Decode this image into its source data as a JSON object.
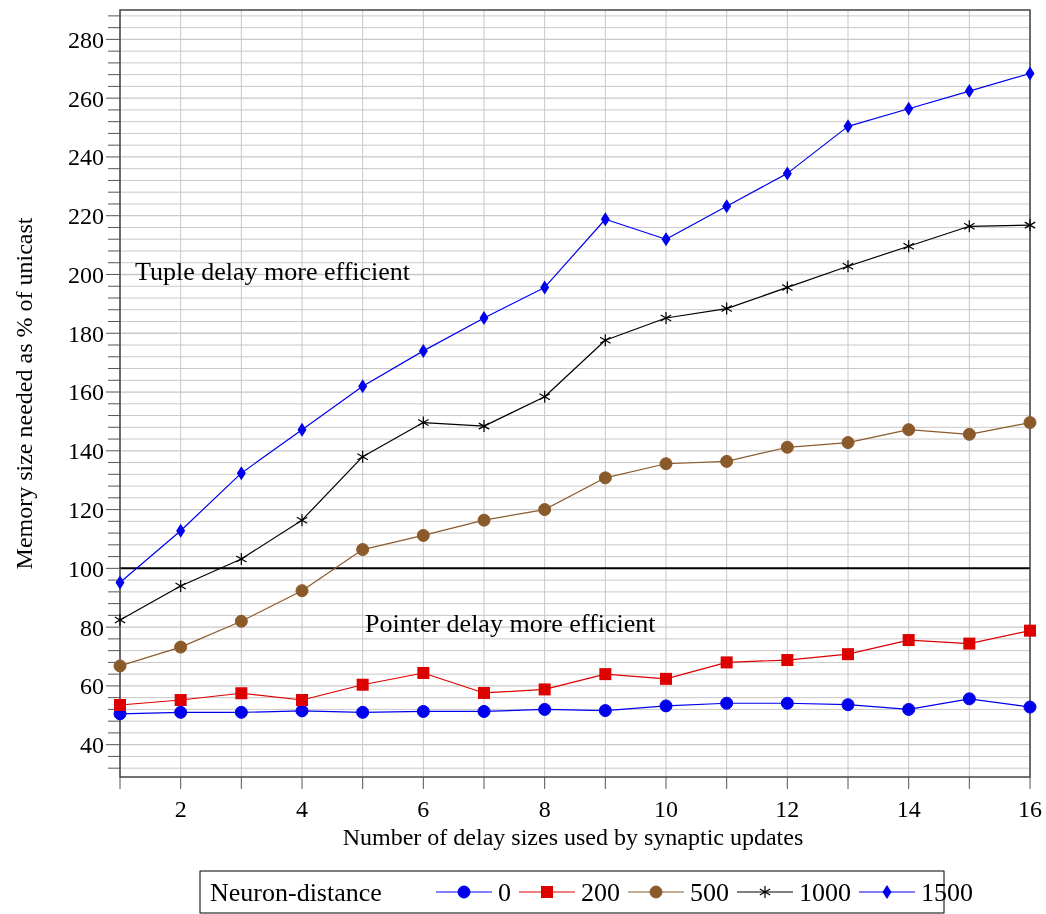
{
  "chart_data": {
    "type": "line",
    "xlabel": "Number of delay sizes used by synaptic updates",
    "ylabel": "Memory size needed as % of unicast",
    "legend_title": "Neuron-distance",
    "legend": "bottom",
    "grid": true,
    "line_style": "solid",
    "x": [
      1,
      2,
      3,
      4,
      5,
      6,
      7,
      8,
      9,
      10,
      11,
      12,
      13,
      14,
      15,
      16
    ],
    "xlim": [
      1,
      16
    ],
    "ylim": [
      29,
      290
    ],
    "xticks": [
      {
        "value": 1,
        "label": null
      },
      2,
      {
        "value": 3,
        "label": null
      },
      4,
      {
        "value": 5,
        "label": null
      },
      6,
      {
        "value": 7,
        "label": null
      },
      8,
      {
        "value": 9,
        "label": null
      },
      10,
      {
        "value": 11,
        "label": null
      },
      12,
      {
        "value": 13,
        "label": null
      },
      14,
      {
        "value": 15,
        "label": null
      },
      16
    ],
    "yticks": [
      {
        "value": 32,
        "label": null
      },
      {
        "value": 36,
        "label": null
      },
      40,
      {
        "value": 44,
        "label": null
      },
      {
        "value": 48,
        "label": null
      },
      {
        "value": 52,
        "label": null
      },
      {
        "value": 56,
        "label": null
      },
      60,
      {
        "value": 64,
        "label": null
      },
      {
        "value": 68,
        "label": null
      },
      {
        "value": 72,
        "label": null
      },
      {
        "value": 76,
        "label": null
      },
      80,
      {
        "value": 84,
        "label": null
      },
      {
        "value": 88,
        "label": null
      },
      {
        "value": 92,
        "label": null
      },
      {
        "value": 96,
        "label": null
      },
      100,
      {
        "value": 104,
        "label": null
      },
      {
        "value": 108,
        "label": null
      },
      {
        "value": 112,
        "label": null
      },
      {
        "value": 116,
        "label": null
      },
      120,
      {
        "value": 124,
        "label": null
      },
      {
        "value": 128,
        "label": null
      },
      {
        "value": 132,
        "label": null
      },
      {
        "value": 136,
        "label": null
      },
      140,
      {
        "value": 144,
        "label": null
      },
      {
        "value": 148,
        "label": null
      },
      {
        "value": 152,
        "label": null
      },
      {
        "value": 156,
        "label": null
      },
      160,
      {
        "value": 164,
        "label": null
      },
      {
        "value": 168,
        "label": null
      },
      {
        "value": 172,
        "label": null
      },
      {
        "value": 176,
        "label": null
      },
      180,
      {
        "value": 184,
        "label": null
      },
      {
        "value": 188,
        "label": null
      },
      {
        "value": 192,
        "label": null
      },
      {
        "value": 196,
        "label": null
      },
      200,
      {
        "value": 204,
        "label": null
      },
      {
        "value": 208,
        "label": null
      },
      {
        "value": 212,
        "label": null
      },
      {
        "value": 216,
        "label": null
      },
      220,
      {
        "value": 224,
        "label": null
      },
      {
        "value": 228,
        "label": null
      },
      {
        "value": 232,
        "label": null
      },
      {
        "value": 236,
        "label": null
      },
      240,
      {
        "value": 244,
        "label": null
      },
      {
        "value": 248,
        "label": null
      },
      {
        "value": 252,
        "label": null
      },
      {
        "value": 256,
        "label": null
      },
      260,
      {
        "value": 264,
        "label": null
      },
      {
        "value": 268,
        "label": null
      },
      {
        "value": 272,
        "label": null
      },
      {
        "value": 276,
        "label": null
      },
      280,
      {
        "value": 284,
        "label": null
      },
      {
        "value": 288,
        "label": null
      }
    ],
    "ref_lines": [
      {
        "axis": "y",
        "value": 100,
        "color": "#000000"
      }
    ],
    "annotations": [
      "Tuple delay more efficient",
      "Pointer delay more efficient"
    ],
    "series": [
      {
        "name": "0",
        "color": "#0000ee",
        "marker": "circle",
        "values": [
          50.5,
          51,
          51,
          51.5,
          51,
          51.3,
          51.3,
          52,
          51.6,
          53.2,
          54.1,
          54.1,
          53.6,
          52,
          55.6,
          52.8
        ]
      },
      {
        "name": "200",
        "color": "#dd0000",
        "marker": "square",
        "values": [
          53.5,
          55.2,
          57.5,
          55.2,
          60.4,
          64.4,
          57.6,
          58.8,
          64,
          62.4,
          68,
          68.8,
          70.8,
          75.6,
          74.4,
          78.8
        ]
      },
      {
        "name": "500",
        "color": "#8b5a2b",
        "marker": "circle",
        "values": [
          66.8,
          73.2,
          82,
          92.4,
          106.4,
          111.2,
          116.4,
          120,
          130.8,
          135.6,
          136.4,
          141.2,
          142.8,
          147.2,
          145.6,
          149.6
        ]
      },
      {
        "name": "1000",
        "color": "#000000",
        "marker": "cross",
        "values": [
          82.4,
          94,
          103.2,
          116.4,
          138,
          149.6,
          148.4,
          158.4,
          177.6,
          185.2,
          188.4,
          195.6,
          202.8,
          209.6,
          216.4,
          216.8
        ]
      },
      {
        "name": "1500",
        "color": "#0000ee",
        "marker": "diamond",
        "values": [
          95.2,
          112.8,
          132.4,
          147.2,
          162,
          174,
          185.2,
          195.6,
          218.8,
          212,
          223.2,
          234.4,
          250.4,
          256.4,
          262.4,
          268.4
        ]
      }
    ]
  }
}
